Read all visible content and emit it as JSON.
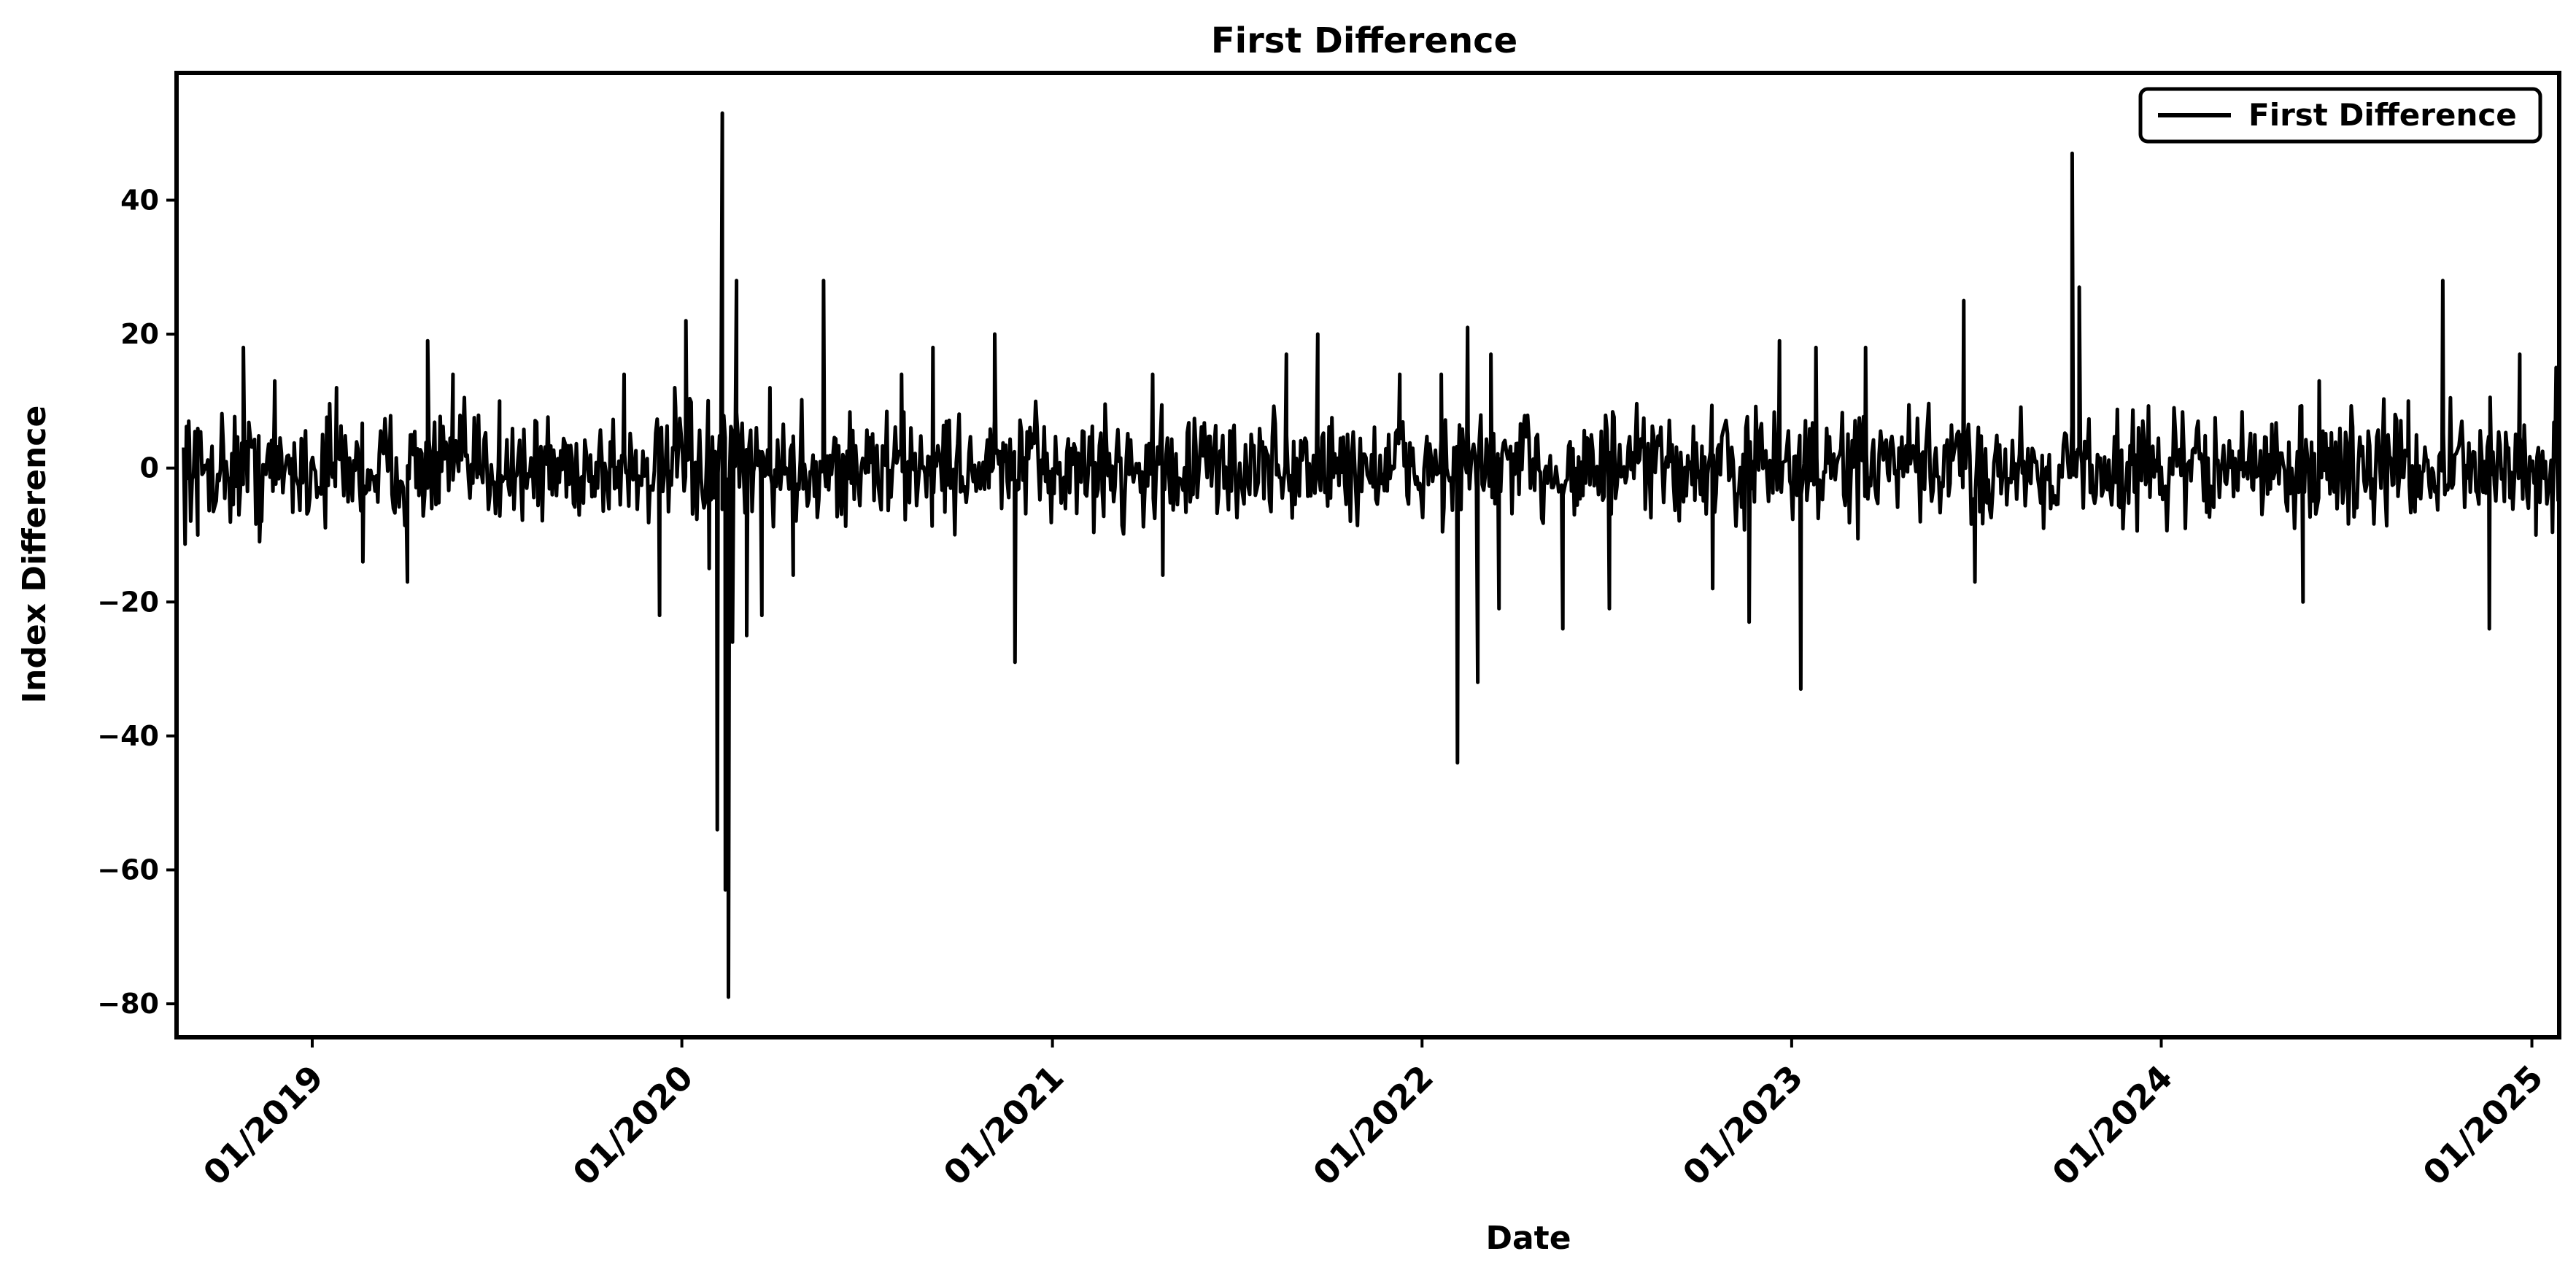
{
  "chart_data": {
    "type": "line",
    "title": "First Difference",
    "xlabel": "Date",
    "ylabel": "Index Difference",
    "legend": {
      "position": "top-right",
      "entries": [
        "First Difference"
      ]
    },
    "grid": false,
    "xlim": [
      "2018-08-20",
      "2025-01-28"
    ],
    "ylim": [
      -85,
      59
    ],
    "x_ticks": [
      {
        "value": "2019-01-01",
        "label": "01/2019"
      },
      {
        "value": "2020-01-01",
        "label": "01/2020"
      },
      {
        "value": "2021-01-01",
        "label": "01/2021"
      },
      {
        "value": "2022-01-01",
        "label": "01/2022"
      },
      {
        "value": "2023-01-01",
        "label": "01/2023"
      },
      {
        "value": "2024-01-01",
        "label": "01/2024"
      },
      {
        "value": "2025-01-01",
        "label": "01/2025"
      }
    ],
    "y_ticks": [
      {
        "value": 40,
        "label": "40"
      },
      {
        "value": 20,
        "label": "20"
      },
      {
        "value": 0,
        "label": "0"
      },
      {
        "value": -20,
        "label": "-20"
      },
      {
        "value": -40,
        "label": "-40"
      },
      {
        "value": -60,
        "label": "-60"
      },
      {
        "value": -80,
        "label": "-80"
      }
    ],
    "series": [
      {
        "name": "First Difference",
        "color": "#000000",
        "base_noise_amplitude": 6,
        "points": [
          {
            "x": "2018-09-01",
            "y": 7
          },
          {
            "x": "2018-09-10",
            "y": -10
          },
          {
            "x": "2018-10-25",
            "y": 18
          },
          {
            "x": "2018-11-10",
            "y": -11
          },
          {
            "x": "2018-11-25",
            "y": 13
          },
          {
            "x": "2019-01-25",
            "y": 12
          },
          {
            "x": "2019-02-20",
            "y": -14
          },
          {
            "x": "2019-04-05",
            "y": -17
          },
          {
            "x": "2019-04-25",
            "y": 19
          },
          {
            "x": "2019-05-20",
            "y": 14
          },
          {
            "x": "2019-07-05",
            "y": 10
          },
          {
            "x": "2019-11-05",
            "y": 14
          },
          {
            "x": "2019-12-10",
            "y": -22
          },
          {
            "x": "2019-12-25",
            "y": 12
          },
          {
            "x": "2020-01-05",
            "y": 22
          },
          {
            "x": "2020-01-28",
            "y": -15
          },
          {
            "x": "2020-02-05",
            "y": -54
          },
          {
            "x": "2020-02-10",
            "y": 53
          },
          {
            "x": "2020-02-13",
            "y": -63
          },
          {
            "x": "2020-02-16",
            "y": -79
          },
          {
            "x": "2020-02-20",
            "y": -26
          },
          {
            "x": "2020-02-24",
            "y": 28
          },
          {
            "x": "2020-03-05",
            "y": -25
          },
          {
            "x": "2020-03-20",
            "y": -22
          },
          {
            "x": "2020-03-28",
            "y": 12
          },
          {
            "x": "2020-04-20",
            "y": -16
          },
          {
            "x": "2020-05-20",
            "y": 28
          },
          {
            "x": "2020-08-05",
            "y": 14
          },
          {
            "x": "2020-09-05",
            "y": 18
          },
          {
            "x": "2020-11-05",
            "y": 20
          },
          {
            "x": "2020-11-25",
            "y": -29
          },
          {
            "x": "2021-04-10",
            "y": 14
          },
          {
            "x": "2021-04-20",
            "y": -16
          },
          {
            "x": "2021-08-20",
            "y": 17
          },
          {
            "x": "2021-09-20",
            "y": 20
          },
          {
            "x": "2021-12-10",
            "y": 14
          },
          {
            "x": "2022-01-20",
            "y": 14
          },
          {
            "x": "2022-02-05",
            "y": -44
          },
          {
            "x": "2022-02-15",
            "y": 21
          },
          {
            "x": "2022-02-25",
            "y": -32
          },
          {
            "x": "2022-03-10",
            "y": 17
          },
          {
            "x": "2022-03-18",
            "y": -21
          },
          {
            "x": "2022-05-20",
            "y": -24
          },
          {
            "x": "2022-07-05",
            "y": -21
          },
          {
            "x": "2022-10-15",
            "y": -18
          },
          {
            "x": "2022-11-20",
            "y": -23
          },
          {
            "x": "2022-12-20",
            "y": 19
          },
          {
            "x": "2023-01-10",
            "y": -33
          },
          {
            "x": "2023-01-25",
            "y": 18
          },
          {
            "x": "2023-03-15",
            "y": 18
          },
          {
            "x": "2023-06-20",
            "y": 25
          },
          {
            "x": "2023-07-01",
            "y": -17
          },
          {
            "x": "2023-10-05",
            "y": 47
          },
          {
            "x": "2023-10-12",
            "y": 27
          },
          {
            "x": "2024-05-20",
            "y": -20
          },
          {
            "x": "2024-06-05",
            "y": 13
          },
          {
            "x": "2024-09-01",
            "y": 10
          },
          {
            "x": "2024-10-05",
            "y": 28
          },
          {
            "x": "2024-11-20",
            "y": -24
          },
          {
            "x": "2024-12-20",
            "y": 17
          },
          {
            "x": "2025-01-05",
            "y": -10
          },
          {
            "x": "2025-01-25",
            "y": 15
          }
        ]
      }
    ]
  }
}
